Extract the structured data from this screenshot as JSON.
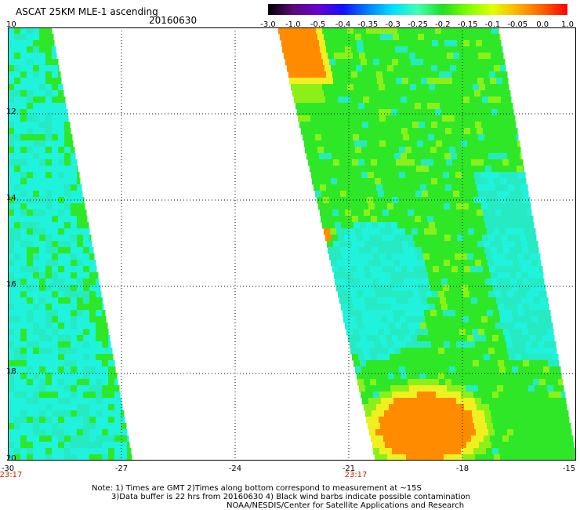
{
  "header": {
    "title": "ASCAT 25KM MLE-1 ascending",
    "date": "20160630"
  },
  "colorbar": {
    "labels": [
      "-3.0",
      "-1.0",
      "-0.5",
      "-0.4",
      "-0.35",
      "-0.3",
      "-0.25",
      "-0.2",
      "-0.15",
      "-0.1",
      "-0.05",
      "0.0",
      "1.0"
    ],
    "colors": [
      "#000000",
      "#5a0a7a",
      "#6a00d0",
      "#1010ff",
      "#0080ff",
      "#00e0ff",
      "#40ffb0",
      "#20e020",
      "#80ff00",
      "#e0ff00",
      "#ffb000",
      "#ff6000",
      "#ff0000"
    ]
  },
  "map": {
    "x_ticks": [
      "-30",
      "-27",
      "-24",
      "-21",
      "-18",
      "-15"
    ],
    "y_ticks": [
      "10",
      "12",
      "14",
      "16",
      "18",
      "20"
    ],
    "time_labels": [
      "23:17",
      "23:17"
    ],
    "colors": {
      "cyan": "#1ff2dd",
      "aqua": "#26ebc2",
      "green": "#2ee828",
      "lime": "#8cf018",
      "yellow": "#f0f020",
      "orange": "#ff8c00",
      "border": "#ffffff"
    }
  },
  "notes": {
    "line1": "Note: 1) Times are GMT 2)Times along bottom correspond to measurement at ~15S",
    "line2": "3)Data buffer is 22 hrs from 20160630 4) Black wind barbs indicate possible contamination",
    "line3": "NOAA/NESDIS/Center for Satellite Applications and Research"
  }
}
